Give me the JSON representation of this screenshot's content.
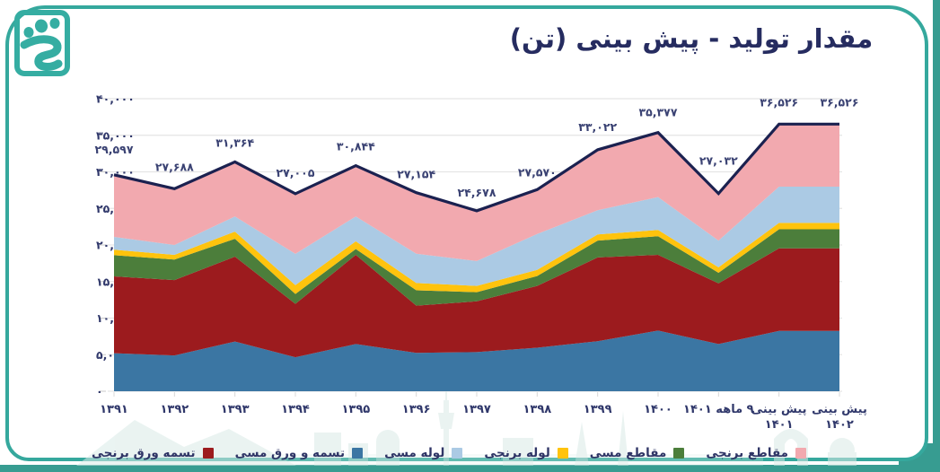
{
  "header": {
    "title": "مقدار تولید - پیش بینی (تن)"
  },
  "theme": {
    "teal_border": "#35A89D",
    "teal_strip": "#379C91",
    "navy_line": "#1B2150",
    "data_label_color": "#3A4273",
    "axis_label_color": "#30386B",
    "gridline_color": "#E5E5E5",
    "watermark_color": "#D9EBE7",
    "background": "#FFFFFF"
  },
  "logo": {
    "name": "company-logo",
    "color": "#35ADA2"
  },
  "chart_data": {
    "type": "area",
    "stacked": true,
    "grid": "horizontal",
    "legend_position": "bottom",
    "title": "مقدار تولید - پیش بینی (تن)",
    "categories": [
      "۱۳۹۱",
      "۱۳۹۲",
      "۱۳۹۳",
      "۱۳۹۴",
      "۱۳۹۵",
      "۱۳۹۶",
      "۱۳۹۷",
      "۱۳۹۸",
      "۱۳۹۹",
      "۱۴۰۰",
      "۹ ماهه ۱۴۰۱",
      "پیش بینی|۱۴۰۱",
      "پیش بینی|۱۴۰۲"
    ],
    "y_axis": {
      "min": 0,
      "max": 40000,
      "step": 5000,
      "tick_labels": [
        "۰",
        "۵,۰۰۰",
        "۱۰,۰۰۰",
        "۱۵,۰۰۰",
        "۲۰,۰۰۰",
        "۲۵,۰۰۰",
        "۳۰,۰۰۰",
        "۳۵,۰۰۰",
        "۴۰,۰۰۰"
      ]
    },
    "series": [
      {
        "key": "copper-strip-sheet",
        "name": "تسمه و ورق مسی",
        "color": "#3B76A3",
        "values": [
          5200,
          4900,
          6800,
          4650,
          6450,
          5250,
          5350,
          5950,
          6850,
          8300,
          6450,
          8250,
          8250
        ]
      },
      {
        "key": "brass-strip-sheet",
        "name": "تسمه ورق برنجی",
        "color": "#9C1B1E",
        "values": [
          10500,
          10300,
          11600,
          7300,
          12200,
          6450,
          6950,
          8450,
          11450,
          10350,
          8300,
          11300,
          11300
        ]
      },
      {
        "key": "copper-profiles",
        "name": "مقاطع مسی",
        "color": "#4C7E3B",
        "values": [
          2900,
          2800,
          2450,
          1350,
          800,
          2100,
          1250,
          1350,
          2300,
          2550,
          1450,
          2600,
          2600
        ]
      },
      {
        "key": "brass-pipe",
        "name": "لوله برنجی",
        "color": "#FFC30D",
        "values": [
          750,
          650,
          980,
          1200,
          1050,
          1000,
          850,
          850,
          850,
          850,
          750,
          870,
          870
        ]
      },
      {
        "key": "copper-pipe",
        "name": "لوله مسی",
        "color": "#ABCAE4",
        "values": [
          1750,
          1350,
          2070,
          4280,
          3400,
          4000,
          3400,
          4900,
          3300,
          4500,
          3650,
          4950,
          4950
        ]
      },
      {
        "key": "brass-profiles",
        "name": "مقاطع برنجی",
        "color": "#F2A9AF",
        "values": [
          8497,
          7688,
          7464,
          8225,
          6944,
          8354,
          6878,
          6070,
          8272,
          8827,
          6432,
          8556,
          8556
        ]
      }
    ],
    "totals": {
      "values": [
        29597,
        27688,
        31364,
        27005,
        30844,
        27154,
        24678,
        27570,
        33022,
        35377,
        27032,
        36526,
        36526
      ],
      "labels": [
        "۲۹,۵۹۷",
        "۲۷,۶۸۸",
        "۳۱,۳۶۴",
        "۲۷,۰۰۵",
        "۳۰,۸۴۴",
        "۲۷,۱۵۴",
        "۲۴,۶۷۸",
        "۲۷,۵۷۰",
        "۳۳,۰۲۲",
        "۳۵,۳۷۷",
        "۲۷,۰۳۲",
        "۳۶,۵۲۶",
        "۳۶,۵۲۶"
      ]
    },
    "legend": [
      {
        "label": "تسمه ورق برنجی",
        "color": "#9C1B1E"
      },
      {
        "label": "تسمه و ورق مسی",
        "color": "#3B76A3"
      },
      {
        "label": "لوله مسی",
        "color": "#ABCAE4"
      },
      {
        "label": "لوله برنجی",
        "color": "#FFC30D"
      },
      {
        "label": "مقاطع مسی",
        "color": "#4C7E3B"
      },
      {
        "label": "مقاطع برنجی",
        "color": "#F2A9AF"
      }
    ]
  }
}
